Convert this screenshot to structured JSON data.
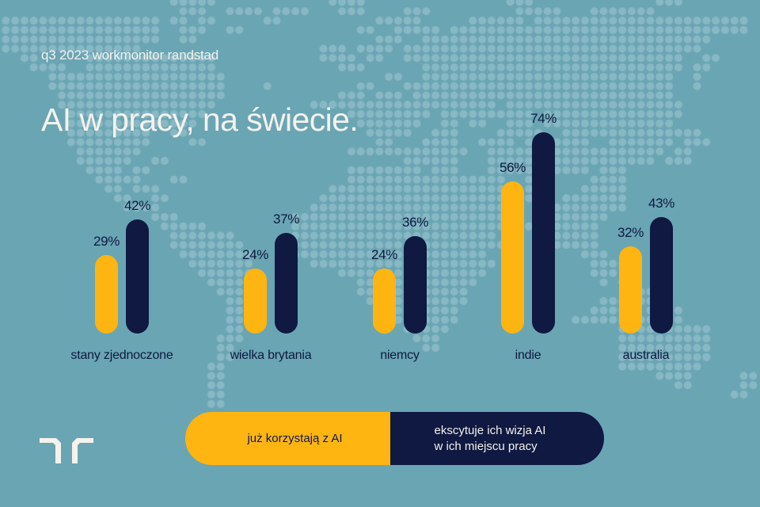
{
  "header": {
    "subtitle": "q3 2023 workmonitor randstad",
    "title": "AI w pracy, na świecie."
  },
  "colors": {
    "background": "#6aa5b4",
    "map_dots": "#8dbac6",
    "series_1": "#ffb511",
    "series_2": "#0f1941",
    "text_light": "#f4f2ec",
    "text_dark": "#0f1941"
  },
  "legend": {
    "series_1_label": "już korzystają z AI",
    "series_2_line1": "ekscytuje ich wizja AI",
    "series_2_line2": "w ich miejscu pracy"
  },
  "logo": {
    "icon": "randstad-logo-icon"
  },
  "chart_data": {
    "type": "bar",
    "title": "AI w pracy, na świecie.",
    "subtitle": "q3 2023 workmonitor randstad",
    "xlabel": "",
    "ylabel": "",
    "unit": "%",
    "ylim": [
      0,
      100
    ],
    "grid": false,
    "legend_position": "bottom",
    "categories": [
      "stany zjednoczone",
      "wielka brytania",
      "niemcy",
      "indie",
      "australia"
    ],
    "series": [
      {
        "name": "już korzystają z AI",
        "color": "#ffb511",
        "values": [
          29,
          24,
          24,
          56,
          32
        ],
        "labels": [
          "29%",
          "24%",
          "24%",
          "56%",
          "32%"
        ]
      },
      {
        "name": "ekscytuje ich wizja AI w ich miejscu pracy",
        "color": "#0f1941",
        "values": [
          42,
          37,
          36,
          74,
          43
        ],
        "labels": [
          "42%",
          "37%",
          "36%",
          "74%",
          "43%"
        ]
      }
    ]
  }
}
